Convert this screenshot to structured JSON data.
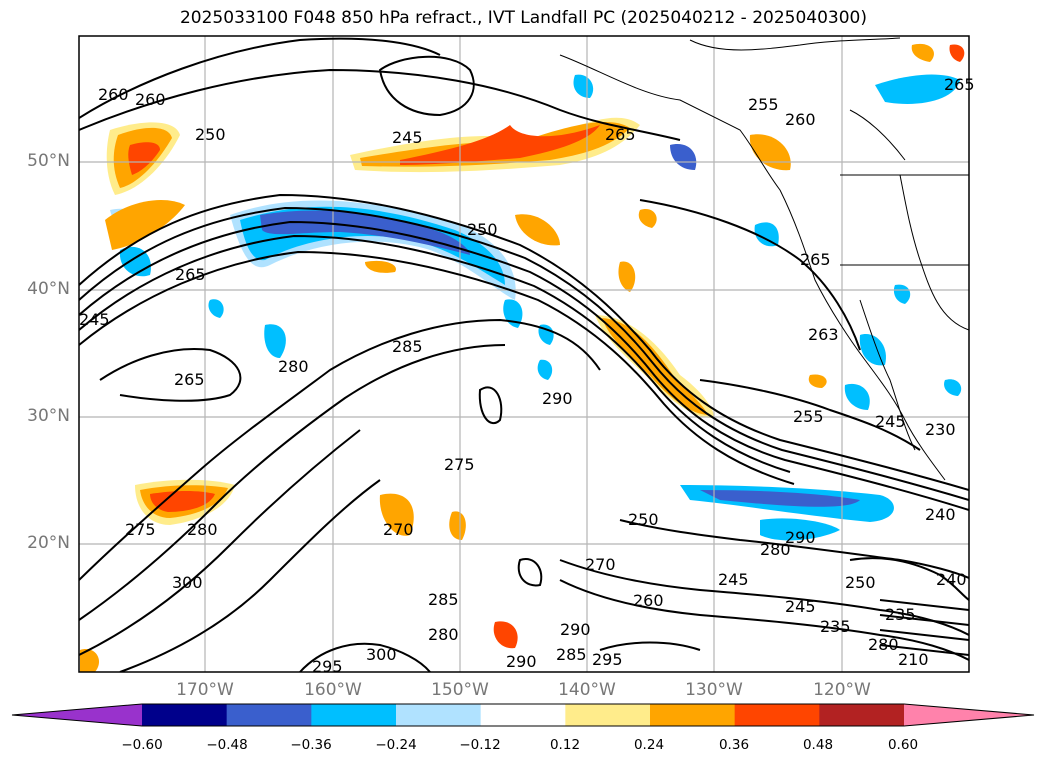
{
  "title": "2025033100 F048 850 hPa refract., IVT Landfall PC (2025040212 - 2025040300)",
  "lat_labels": [
    "50°N",
    "40°N",
    "30°N",
    "20°N"
  ],
  "lon_labels": [
    "170°W",
    "160°W",
    "150°W",
    "140°W",
    "130°W",
    "120°W"
  ],
  "contour_labels": [
    "260",
    "260",
    "250",
    "245",
    "265",
    "255",
    "260",
    "265",
    "250",
    "265",
    "265",
    "245",
    "280",
    "285",
    "265",
    "290",
    "263",
    "255",
    "245",
    "230",
    "275",
    "280",
    "275",
    "250",
    "270",
    "260",
    "245",
    "250",
    "300",
    "285",
    "235",
    "245",
    "235",
    "280",
    "290",
    "290",
    "295",
    "300",
    "295",
    "240",
    "240",
    "280",
    "270",
    "210",
    "280",
    "285",
    "290"
  ],
  "colorbar": {
    "ticks": [
      "−0.60",
      "−0.48",
      "−0.36",
      "−0.24",
      "−0.12",
      "0.12",
      "0.24",
      "0.36",
      "0.48",
      "0.60"
    ],
    "colors": [
      "#9932cc",
      "#00008b",
      "#3a5fcd",
      "#00bfff",
      "#b0e2ff",
      "#ffffff",
      "#ffec8b",
      "#ffa500",
      "#ff4500",
      "#b22222",
      "#ff82ab"
    ]
  }
}
